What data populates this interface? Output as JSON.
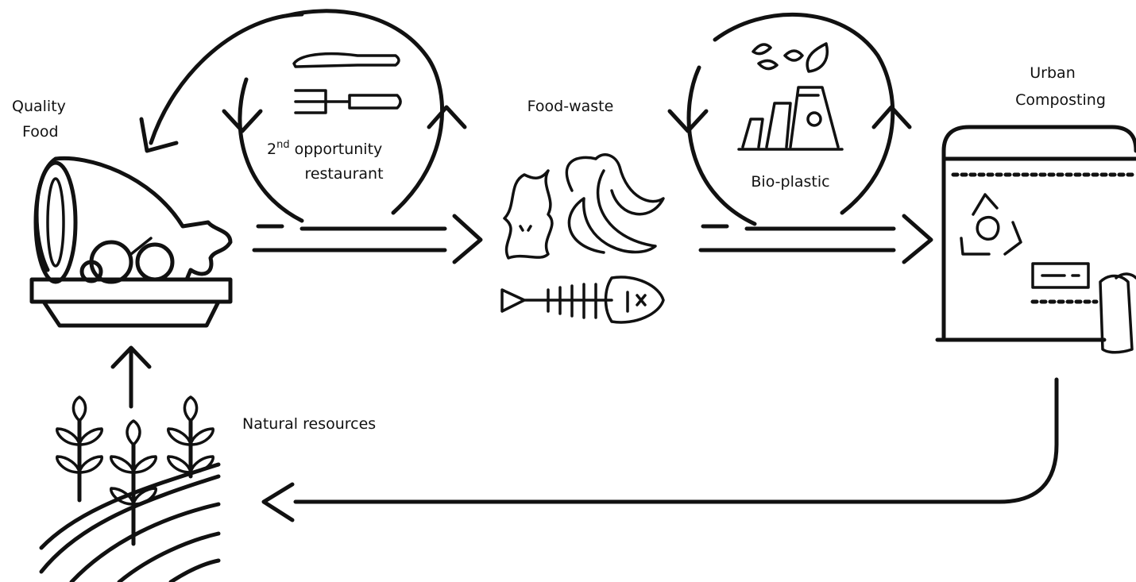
{
  "nodes": [
    {
      "label_lines": [
        "Quality",
        "Food"
      ]
    },
    {
      "ordinal": "2",
      "ordinal_suffix": "nd",
      "line1": "opportunity",
      "line2": "restaurant"
    },
    {
      "label": "Food-waste"
    },
    {
      "label": "Bio-plastic"
    },
    {
      "label_lines": [
        "Urban",
        "Composting"
      ]
    },
    {
      "label": "Natural resources"
    }
  ]
}
